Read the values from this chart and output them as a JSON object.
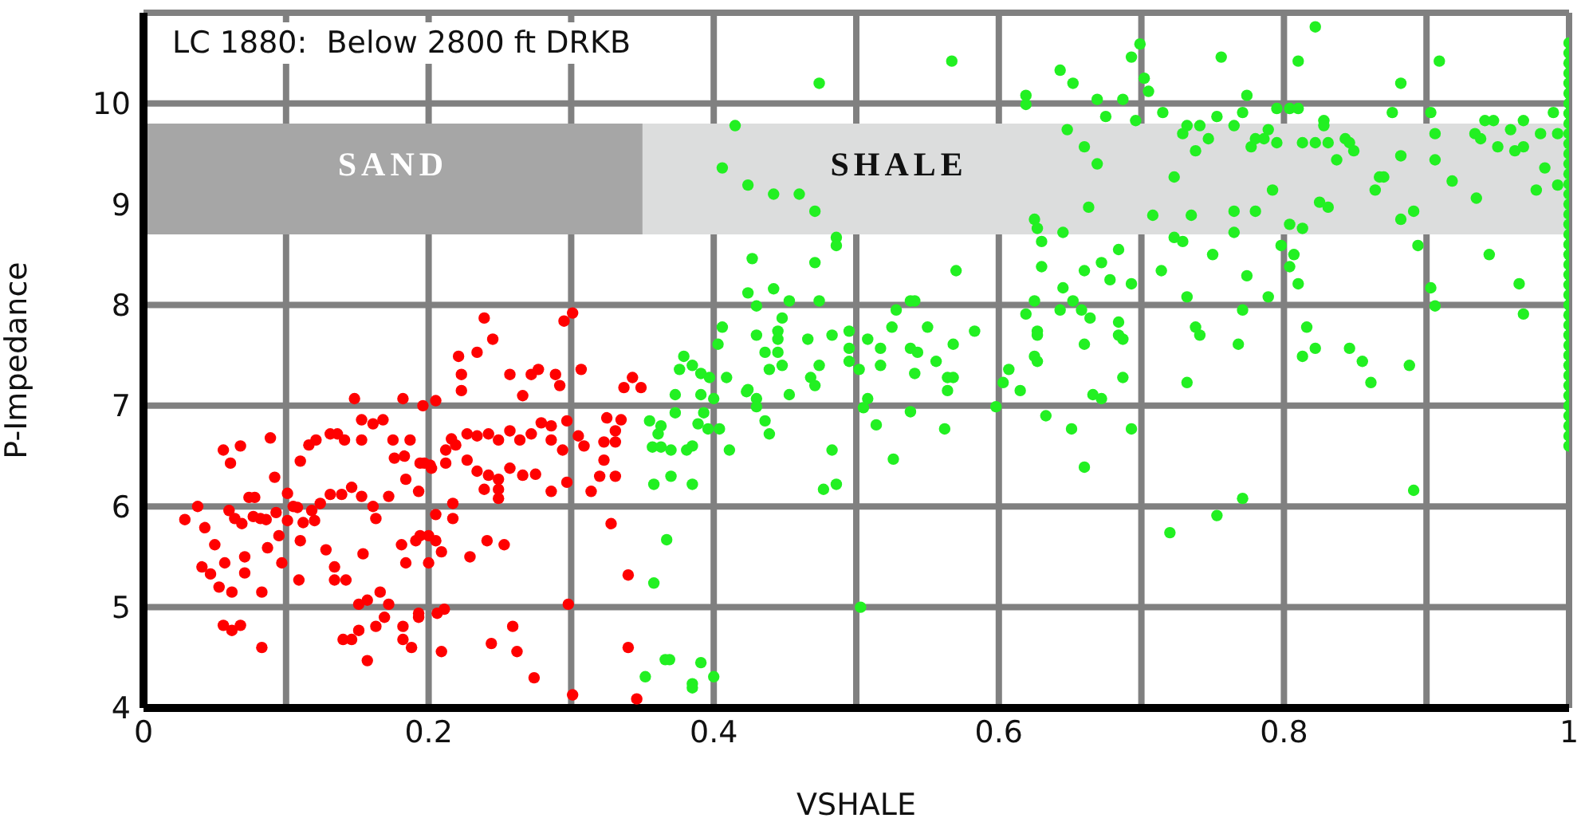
{
  "chart_data": {
    "type": "scatter",
    "title": "LC 1880:  Below 2800 ft DRKB",
    "xlabel": "VSHALE",
    "ylabel": "P-Impedance",
    "xlim": [
      0,
      1
    ],
    "ylim": [
      4,
      10.9
    ],
    "xticks": [
      0,
      {
        "value": 0.1,
        "label": null
      },
      0.2,
      {
        "value": 0.3,
        "label": null
      },
      0.4,
      {
        "value": 0.5,
        "label": null
      },
      0.6,
      {
        "value": 0.7,
        "label": null
      },
      0.8,
      {
        "value": 0.9,
        "label": null
      },
      1
    ],
    "yticks": [
      4,
      5,
      6,
      7,
      8,
      9,
      10
    ],
    "grid": true,
    "marker": "circle",
    "bands": [
      {
        "axis": "y",
        "from": 8.7,
        "to": 9.8,
        "label": "SHALE",
        "color": "#dcdddd"
      },
      {
        "axis": "x",
        "from": 0,
        "to": 0.35,
        "label": "SAND",
        "color": "#a6a6a6"
      }
    ],
    "series": [
      {
        "color": "#ff0000",
        "x": [
          0.239,
          0.301,
          0.295,
          0.245,
          0.234,
          0.221,
          0.223,
          0.257,
          0.272,
          0.277,
          0.289,
          0.307,
          0.292,
          0.266,
          0.223,
          0.343,
          0.337,
          0.349,
          0.148,
          0.182,
          0.205,
          0.196,
          0.089,
          0.056,
          0.068,
          0.061,
          0.029,
          0.038,
          0.043,
          0.041,
          0.047,
          0.05,
          0.057,
          0.06,
          0.053,
          0.062,
          0.056,
          0.068,
          0.062,
          0.083,
          0.083,
          0.071,
          0.071,
          0.074,
          0.078,
          0.069,
          0.064,
          0.082,
          0.087,
          0.097,
          0.095,
          0.092,
          0.101,
          0.105,
          0.11,
          0.11,
          0.116,
          0.121,
          0.131,
          0.136,
          0.141,
          0.153,
          0.161,
          0.168,
          0.153,
          0.175,
          0.187,
          0.176,
          0.183,
          0.194,
          0.201,
          0.212,
          0.216,
          0.227,
          0.234,
          0.242,
          0.249,
          0.257,
          0.264,
          0.272,
          0.279,
          0.286,
          0.297,
          0.305,
          0.309,
          0.294,
          0.286,
          0.227,
          0.234,
          0.212,
          0.219,
          0.242,
          0.249,
          0.257,
          0.266,
          0.275,
          0.249,
          0.249,
          0.239,
          0.286,
          0.297,
          0.314,
          0.32,
          0.323,
          0.331,
          0.323,
          0.331,
          0.331,
          0.335,
          0.325,
          0.328,
          0.34,
          0.34,
          0.298,
          0.301,
          0.346,
          0.274,
          0.262,
          0.259,
          0.244,
          0.209,
          0.211,
          0.206,
          0.193,
          0.193,
          0.188,
          0.182,
          0.182,
          0.166,
          0.172,
          0.169,
          0.163,
          0.157,
          0.151,
          0.151,
          0.146,
          0.14,
          0.157,
          0.154,
          0.134,
          0.142,
          0.134,
          0.128,
          0.109,
          0.181,
          0.184,
          0.191,
          0.194,
          0.2,
          0.205,
          0.2,
          0.209,
          0.217,
          0.217,
          0.205,
          0.229,
          0.241,
          0.253,
          0.197,
          0.202,
          0.184,
          0.193,
          0.172,
          0.163,
          0.161,
          0.153,
          0.146,
          0.139,
          0.131,
          0.124,
          0.118,
          0.12,
          0.112,
          0.108,
          0.101,
          0.093,
          0.086,
          0.077
        ],
        "values": [
          7.87,
          7.92,
          7.84,
          7.66,
          7.53,
          7.49,
          7.31,
          7.31,
          7.31,
          7.36,
          7.31,
          7.36,
          7.2,
          7.1,
          7.15,
          7.28,
          7.18,
          7.18,
          7.07,
          7.07,
          7.05,
          7.0,
          6.68,
          6.56,
          6.6,
          6.43,
          5.87,
          6.0,
          5.79,
          5.4,
          5.33,
          5.62,
          5.44,
          5.96,
          5.2,
          5.15,
          4.82,
          4.82,
          4.77,
          4.6,
          5.15,
          5.34,
          5.5,
          6.09,
          6.09,
          5.83,
          5.88,
          5.88,
          5.59,
          5.44,
          5.71,
          6.29,
          6.13,
          6.0,
          5.66,
          6.45,
          6.61,
          6.66,
          6.72,
          6.72,
          6.66,
          6.66,
          6.82,
          6.86,
          6.86,
          6.66,
          6.66,
          6.48,
          6.5,
          6.43,
          6.41,
          6.56,
          6.67,
          6.72,
          6.7,
          6.72,
          6.66,
          6.75,
          6.66,
          6.72,
          6.83,
          6.8,
          6.85,
          6.7,
          6.6,
          6.56,
          6.66,
          6.46,
          6.35,
          6.43,
          6.61,
          6.31,
          6.27,
          6.38,
          6.31,
          6.32,
          6.17,
          6.08,
          6.17,
          6.15,
          6.24,
          6.15,
          6.3,
          6.46,
          6.3,
          6.64,
          6.75,
          6.64,
          6.86,
          6.88,
          5.83,
          5.32,
          4.6,
          5.03,
          4.13,
          4.09,
          4.3,
          4.56,
          4.81,
          4.64,
          4.56,
          4.98,
          4.94,
          4.94,
          4.9,
          4.6,
          4.68,
          4.81,
          5.15,
          5.03,
          4.9,
          4.81,
          5.07,
          5.03,
          4.77,
          4.68,
          4.68,
          4.47,
          5.53,
          5.27,
          5.27,
          5.4,
          5.57,
          5.27,
          5.62,
          5.44,
          5.66,
          5.71,
          5.71,
          5.66,
          5.44,
          5.55,
          5.88,
          6.03,
          5.92,
          5.5,
          5.66,
          5.62,
          6.43,
          6.38,
          6.27,
          6.15,
          6.1,
          5.88,
          6.0,
          6.1,
          6.19,
          6.12,
          6.12,
          6.03,
          5.96,
          5.86,
          5.84,
          5.99,
          5.86,
          5.94,
          5.87,
          5.9
        ]
      },
      {
        "color": "#22f022",
        "x": [
          0.474,
          0.415,
          0.406,
          0.424,
          0.442,
          0.46,
          0.471,
          0.486,
          0.486,
          0.427,
          0.471,
          0.424,
          0.442,
          0.43,
          0.453,
          0.474,
          0.448,
          0.445,
          0.445,
          0.43,
          0.436,
          0.445,
          0.466,
          0.483,
          0.495,
          0.495,
          0.403,
          0.406,
          0.379,
          0.376,
          0.385,
          0.391,
          0.397,
          0.409,
          0.439,
          0.448,
          0.474,
          0.468,
          0.471,
          0.495,
          0.424,
          0.43,
          0.453,
          0.373,
          0.391,
          0.4,
          0.355,
          0.363,
          0.361,
          0.357,
          0.363,
          0.37,
          0.381,
          0.385,
          0.373,
          0.393,
          0.389,
          0.396,
          0.404,
          0.411,
          0.423,
          0.43,
          0.436,
          0.439,
          0.483,
          0.477,
          0.486,
          0.358,
          0.37,
          0.385,
          0.367,
          0.358,
          0.503,
          0.366,
          0.369,
          0.352,
          0.391,
          0.4,
          0.385,
          0.385,
          0.567,
          0.643,
          0.652,
          0.619,
          0.619,
          0.669,
          0.687,
          0.693,
          0.699,
          0.702,
          0.705,
          0.675,
          0.696,
          0.648,
          0.66,
          0.669,
          0.663,
          0.625,
          0.627,
          0.645,
          0.63,
          0.57,
          0.63,
          0.66,
          0.672,
          0.684,
          0.678,
          0.693,
          0.645,
          0.625,
          0.652,
          0.658,
          0.664,
          0.643,
          0.619,
          0.684,
          0.687,
          0.684,
          0.66,
          0.627,
          0.627,
          0.625,
          0.627,
          0.607,
          0.603,
          0.615,
          0.666,
          0.672,
          0.687,
          0.583,
          0.568,
          0.55,
          0.538,
          0.543,
          0.556,
          0.564,
          0.568,
          0.564,
          0.541,
          0.525,
          0.528,
          0.538,
          0.541,
          0.517,
          0.517,
          0.508,
          0.502,
          0.508,
          0.715,
          0.729,
          0.732,
          0.741,
          0.747,
          0.753,
          0.765,
          0.771,
          0.774,
          0.756,
          0.738,
          0.723,
          0.777,
          0.78,
          0.789,
          0.786,
          0.795,
          0.795,
          0.804,
          0.81,
          0.81,
          0.822,
          0.792,
          0.708,
          0.735,
          0.765,
          0.78,
          0.765,
          0.723,
          0.729,
          0.75,
          0.714,
          0.774,
          0.732,
          0.771,
          0.789,
          0.738,
          0.741,
          0.768,
          0.732,
          0.804,
          0.813,
          0.798,
          0.807,
          0.804,
          0.81,
          0.816,
          0.822,
          0.813,
          0.846,
          0.855,
          0.861,
          0.888,
          0.813,
          0.822,
          0.831,
          0.828,
          0.828,
          0.843,
          0.846,
          0.849,
          0.837,
          0.825,
          0.831,
          0.864,
          0.867,
          0.87,
          0.876,
          0.882,
          0.882,
          0.882,
          0.891,
          0.894,
          0.909,
          0.903,
          0.906,
          0.906,
          0.918,
          0.935,
          0.903,
          0.906,
          0.944,
          0.965,
          0.968,
          0.934,
          0.938,
          0.941,
          0.947,
          0.95,
          0.959,
          0.962,
          0.968,
          0.968,
          0.98,
          0.983,
          0.977,
          0.992,
          0.989,
          0.992,
          0.505,
          0.514,
          0.526,
          0.538,
          0.562,
          0.598,
          0.633,
          0.651,
          0.66,
          0.693,
          0.72,
          0.753,
          0.771,
          0.891,
          1,
          1,
          1,
          1,
          1,
          1,
          1,
          1,
          1,
          1,
          1,
          1,
          1,
          1,
          1,
          1,
          1,
          1,
          1,
          1,
          1,
          1,
          1,
          1,
          1,
          1,
          1,
          1,
          1,
          1,
          1,
          1,
          1,
          1,
          1,
          1,
          1,
          1,
          1,
          1,
          1
        ],
        "values": [
          10.2,
          9.78,
          9.36,
          9.19,
          9.1,
          9.1,
          8.93,
          8.67,
          8.59,
          8.46,
          8.42,
          8.12,
          8.16,
          7.99,
          8.04,
          8.04,
          7.87,
          7.74,
          7.66,
          7.7,
          7.53,
          7.53,
          7.66,
          7.7,
          7.74,
          7.57,
          7.61,
          7.78,
          7.49,
          7.36,
          7.4,
          7.32,
          7.28,
          7.28,
          7.36,
          7.4,
          7.4,
          7.28,
          7.2,
          7.44,
          7.16,
          7.07,
          7.11,
          7.11,
          7.11,
          7.07,
          6.85,
          6.8,
          6.72,
          6.59,
          6.59,
          6.56,
          6.56,
          6.6,
          6.93,
          6.93,
          6.82,
          6.77,
          6.77,
          6.56,
          7.14,
          6.99,
          6.85,
          6.72,
          6.56,
          6.17,
          6.22,
          6.22,
          6.3,
          6.22,
          5.67,
          5.24,
          5.0,
          4.48,
          4.48,
          4.31,
          4.45,
          4.31,
          4.24,
          4.2,
          10.42,
          10.33,
          10.2,
          10.08,
          9.99,
          10.04,
          10.04,
          10.46,
          10.59,
          10.25,
          10.12,
          9.87,
          9.83,
          9.74,
          9.57,
          9.4,
          8.97,
          8.85,
          8.76,
          8.72,
          8.63,
          8.34,
          8.38,
          8.34,
          8.42,
          8.55,
          8.25,
          8.21,
          8.17,
          8.04,
          8.04,
          7.95,
          7.87,
          7.95,
          7.91,
          7.83,
          7.66,
          7.7,
          7.61,
          7.74,
          7.7,
          7.49,
          7.44,
          7.36,
          7.23,
          7.15,
          7.11,
          7.07,
          7.28,
          7.74,
          7.61,
          7.78,
          7.57,
          7.53,
          7.44,
          7.28,
          7.28,
          7.15,
          7.32,
          7.78,
          7.95,
          8.04,
          8.04,
          7.57,
          7.4,
          7.66,
          7.36,
          7.07,
          9.91,
          9.7,
          9.78,
          9.78,
          9.65,
          9.87,
          9.78,
          9.91,
          10.08,
          10.46,
          9.53,
          9.27,
          9.57,
          9.65,
          9.74,
          9.65,
          9.61,
          9.95,
          9.95,
          9.95,
          10.42,
          10.76,
          9.14,
          8.89,
          8.89,
          8.93,
          8.93,
          8.72,
          8.67,
          8.63,
          8.5,
          8.34,
          8.29,
          8.08,
          7.95,
          8.08,
          7.78,
          7.7,
          7.61,
          7.23,
          8.8,
          8.76,
          8.59,
          8.5,
          8.38,
          8.21,
          7.78,
          7.57,
          7.49,
          7.57,
          7.44,
          7.23,
          7.4,
          9.61,
          9.61,
          9.61,
          9.83,
          9.78,
          9.65,
          9.61,
          9.53,
          9.44,
          9.02,
          8.97,
          9.14,
          9.27,
          9.27,
          9.91,
          10.2,
          9.48,
          8.85,
          8.93,
          8.59,
          10.42,
          9.91,
          9.7,
          9.44,
          9.23,
          9.06,
          8.17,
          7.99,
          8.5,
          8.21,
          7.91,
          9.7,
          9.65,
          9.83,
          9.83,
          9.57,
          9.74,
          9.53,
          9.83,
          9.57,
          9.7,
          9.36,
          9.14,
          9.19,
          9.91,
          9.7,
          6.98,
          6.81,
          6.47,
          6.94,
          6.77,
          6.99,
          6.9,
          6.77,
          6.39,
          6.77,
          5.74,
          5.91,
          6.08,
          6.16,
          6.6,
          6.7,
          6.8,
          6.9,
          7.0,
          7.1,
          7.2,
          7.3,
          7.4,
          7.5,
          7.6,
          7.7,
          7.8,
          7.9,
          8.0,
          8.1,
          8.2,
          8.3,
          8.4,
          8.5,
          8.6,
          8.7,
          8.8,
          8.9,
          9.0,
          9.1,
          9.2,
          9.3,
          9.4,
          9.5,
          9.6,
          9.7,
          9.8,
          9.9,
          10.0,
          10.1,
          10.2,
          10.3,
          10.4,
          10.5,
          10.6
        ]
      }
    ]
  }
}
